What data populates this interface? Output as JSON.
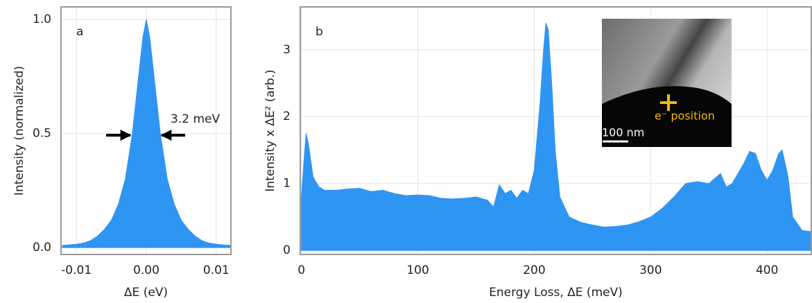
{
  "chart_data": [
    {
      "type": "area",
      "panel_label": "a",
      "annotation": "3.2 meV",
      "x_label": "ΔE (eV)",
      "y_label": "Intensity (normalized)",
      "color": "#2f95f2",
      "grid": true,
      "xlim": [
        -0.0122,
        0.0121
      ],
      "ylim": [
        -0.03,
        1.055
      ],
      "xticks": [
        -0.01,
        {
          "value": 0,
          "label": "0.00"
        },
        0.01
      ],
      "yticks": [
        {
          "value": 0,
          "label": "0.0"
        },
        0.5,
        {
          "value": 1,
          "label": "1.0"
        }
      ],
      "x": [
        -0.012,
        -0.011,
        -0.01,
        -0.009,
        -0.008,
        -0.007,
        -0.006,
        -0.005,
        -0.004,
        -0.003,
        -0.002,
        -0.001,
        -0.0005,
        0,
        0.0005,
        0.001,
        0.002,
        0.003,
        0.004,
        0.005,
        0.006,
        0.007,
        0.008,
        0.009,
        0.01,
        0.011,
        0.012
      ],
      "values": [
        0.01,
        0.012,
        0.015,
        0.02,
        0.03,
        0.05,
        0.08,
        0.12,
        0.19,
        0.3,
        0.5,
        0.78,
        0.92,
        1.0,
        0.92,
        0.78,
        0.5,
        0.3,
        0.19,
        0.12,
        0.08,
        0.05,
        0.03,
        0.02,
        0.015,
        0.012,
        0.01
      ]
    },
    {
      "type": "area",
      "panel_label": "b",
      "inset_labels": [
        "100 nm",
        "e⁻ position"
      ],
      "x_label": "Energy Loss, ΔE (meV)",
      "y_label": "Intensity x ΔE² (arb.)",
      "color": "#2f95f2",
      "grid": true,
      "xlim": [
        -1,
        438
      ],
      "ylim": [
        -0.06,
        3.64
      ],
      "xticks": [
        0,
        100,
        200,
        300,
        400
      ],
      "yticks": [
        0,
        1,
        2,
        3
      ],
      "x": [
        0,
        2,
        4,
        6,
        10,
        15,
        20,
        30,
        40,
        50,
        60,
        70,
        80,
        90,
        100,
        110,
        120,
        130,
        140,
        150,
        160,
        165,
        170,
        175,
        180,
        185,
        190,
        195,
        200,
        205,
        208,
        210,
        212,
        215,
        218,
        222,
        230,
        240,
        250,
        260,
        270,
        280,
        290,
        300,
        310,
        320,
        330,
        340,
        350,
        360,
        365,
        370,
        380,
        385,
        390,
        395,
        400,
        405,
        410,
        413,
        418,
        422,
        430,
        438
      ],
      "values": [
        0.8,
        1.3,
        1.75,
        1.6,
        1.1,
        0.95,
        0.9,
        0.9,
        0.92,
        0.93,
        0.88,
        0.9,
        0.85,
        0.82,
        0.83,
        0.82,
        0.78,
        0.77,
        0.78,
        0.8,
        0.75,
        0.65,
        0.98,
        0.85,
        0.9,
        0.78,
        0.9,
        0.85,
        1.2,
        2.2,
        3.0,
        3.4,
        3.3,
        2.5,
        1.5,
        0.8,
        0.5,
        0.42,
        0.38,
        0.35,
        0.36,
        0.38,
        0.43,
        0.5,
        0.63,
        0.8,
        1.0,
        1.03,
        1.0,
        1.15,
        0.95,
        1.0,
        1.3,
        1.48,
        1.45,
        1.2,
        1.05,
        1.2,
        1.45,
        1.5,
        1.1,
        0.5,
        0.3,
        0.28
      ]
    }
  ]
}
